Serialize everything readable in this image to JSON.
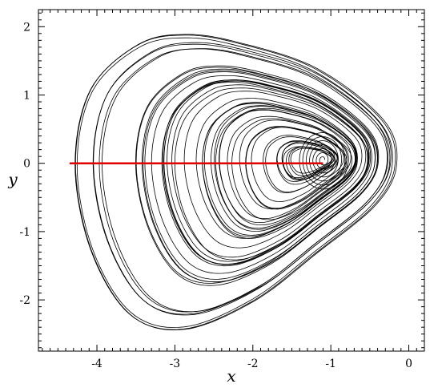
{
  "chart_data": {
    "type": "line",
    "title": "",
    "xlabel": "x",
    "ylabel": "y",
    "xlim": [
      -4.75,
      0.2
    ],
    "ylim": [
      -2.75,
      2.25
    ],
    "grid": false,
    "x_ticks": [
      -4,
      -3,
      -2,
      -1,
      0
    ],
    "x_tick_labels": [
      "-4",
      "-3",
      "-2",
      "-1",
      "0"
    ],
    "y_ticks": [
      -2,
      -1,
      0,
      1,
      2
    ],
    "y_tick_labels": [
      "-2",
      "-1",
      "0",
      "1",
      "2"
    ],
    "colors": {
      "trajectory": "#000000",
      "section_line": "#e00000"
    },
    "series": [
      {
        "style": "chaotic-trajectory",
        "color": "#000000",
        "envelope_outer": [
          [
            -4.3,
            0.0
          ],
          [
            -4.1,
            1.1
          ],
          [
            -3.5,
            1.75
          ],
          [
            -2.9,
            1.9
          ],
          [
            -2.2,
            1.78
          ],
          [
            -1.2,
            1.4
          ],
          [
            -0.35,
            0.65
          ],
          [
            -0.18,
            0.0
          ],
          [
            -0.45,
            -0.6
          ],
          [
            -1.2,
            -1.3
          ],
          [
            -2.0,
            -2.0
          ],
          [
            -2.9,
            -2.42
          ],
          [
            -3.6,
            -2.2
          ],
          [
            -4.1,
            -1.25
          ],
          [
            -4.3,
            0.0
          ]
        ],
        "inner_focus": [
          -1.1,
          0.05
        ]
      },
      {
        "style": "section-line",
        "color": "#e00000",
        "x": [
          -4.35,
          -1.1
        ],
        "y": [
          0.0,
          0.0
        ]
      }
    ]
  }
}
